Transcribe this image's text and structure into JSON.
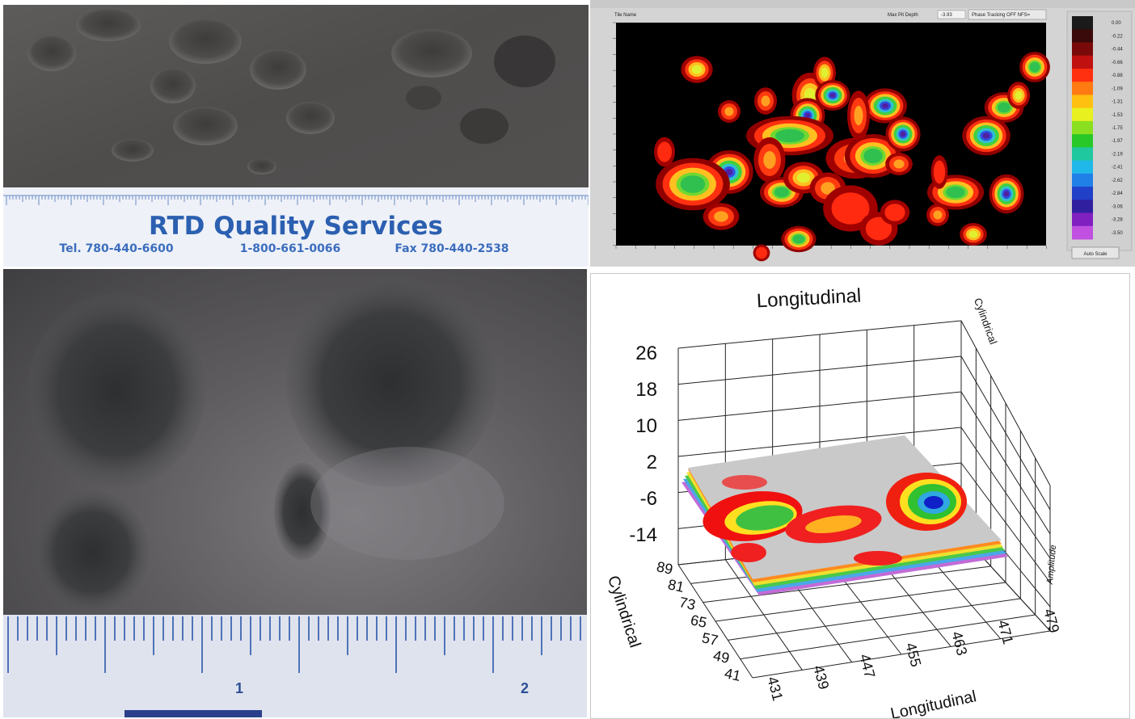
{
  "ruler_top": {
    "company": "RTD Quality Services",
    "tel": "Tel. 780-440-6600",
    "tollfree": "1-800-661-0066",
    "fax": "Fax 780-440-2538"
  },
  "ruler_bottom": {
    "marks": [
      "1",
      "2"
    ]
  },
  "heatmap": {
    "tile_name_label": "Tile Name",
    "max_pit_depth_label": "Max Pit Depth",
    "max_pit_depth_value": "-3.93",
    "mode_value": "Phase Tracking OFF NFS=",
    "auto_scale_label": "Auto Scale",
    "scale_values": [
      "0.00",
      "-0.22",
      "-0.44",
      "-0.66",
      "-0.88",
      "-1.09",
      "-1.31",
      "-1.53",
      "-1.75",
      "-1.97",
      "-2.19",
      "-2.41",
      "-2.62",
      "-2.84",
      "-3.06",
      "-3.28",
      "-3.50"
    ],
    "scale_colors": [
      "#1a1a1a",
      "#3a0a0a",
      "#7a0a0a",
      "#c01010",
      "#ff3010",
      "#ff7a10",
      "#ffc010",
      "#e8f020",
      "#8ae020",
      "#28c828",
      "#20c8a0",
      "#20b8e8",
      "#2080e8",
      "#2040c8",
      "#3020a0",
      "#8020c0",
      "#c050e0"
    ]
  },
  "surface": {
    "title": "Longitudinal",
    "z_ticks": [
      "26",
      "18",
      "10",
      "2",
      "-6",
      "-14"
    ],
    "cyl_ticks": [
      "89",
      "81",
      "73",
      "65",
      "57",
      "49",
      "41"
    ],
    "long_ticks": [
      "431",
      "439",
      "447",
      "455",
      "463",
      "471",
      "479"
    ],
    "x_label": "Longitudinal",
    "y_label": "Cylindrical",
    "top_right_label": "Cylindrical",
    "right_label": "Amplitude"
  }
}
